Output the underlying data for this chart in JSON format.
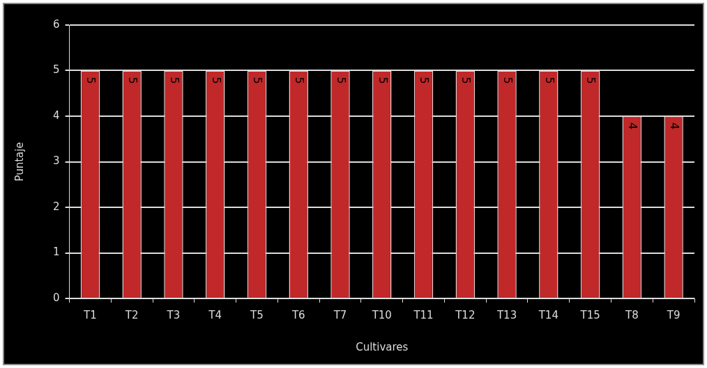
{
  "chart_data": {
    "type": "bar",
    "xlabel": "Cultivares",
    "ylabel": "Puntaje",
    "categories": [
      "T1",
      "T2",
      "T3",
      "T4",
      "T5",
      "T6",
      "T7",
      "T10",
      "T11",
      "T12",
      "T13",
      "T14",
      "T15",
      "T8",
      "T9"
    ],
    "values": [
      5,
      5,
      5,
      5,
      5,
      5,
      5,
      5,
      5,
      5,
      5,
      5,
      5,
      4,
      4
    ],
    "color": "#c0282a",
    "ylim": [
      0,
      6
    ],
    "yticks": [
      0,
      1,
      2,
      3,
      4,
      5,
      6
    ],
    "grid": "y",
    "data_labels": true,
    "legend": false
  }
}
